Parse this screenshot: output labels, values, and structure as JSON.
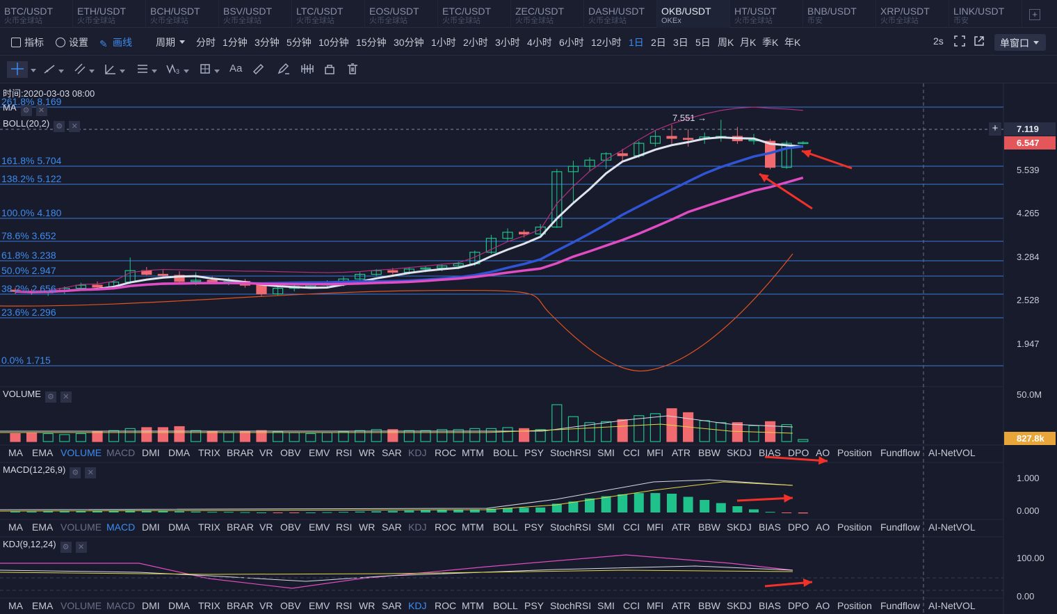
{
  "symbols": [
    {
      "pair": "BTC/USDT",
      "exchange": "火币全球站"
    },
    {
      "pair": "ETH/USDT",
      "exchange": "火币全球站"
    },
    {
      "pair": "BCH/USDT",
      "exchange": "火币全球站"
    },
    {
      "pair": "BSV/USDT",
      "exchange": "火币全球站"
    },
    {
      "pair": "LTC/USDT",
      "exchange": "火币全球站"
    },
    {
      "pair": "EOS/USDT",
      "exchange": "火币全球站"
    },
    {
      "pair": "ETC/USDT",
      "exchange": "火币全球站"
    },
    {
      "pair": "ZEC/USDT",
      "exchange": "火币全球站"
    },
    {
      "pair": "DASH/USDT",
      "exchange": "火币全球站"
    },
    {
      "pair": "OKB/USDT",
      "exchange": "OKEx"
    },
    {
      "pair": "HT/USDT",
      "exchange": "火币全球站"
    },
    {
      "pair": "BNB/USDT",
      "exchange": "币安"
    },
    {
      "pair": "XRP/USDT",
      "exchange": "火币全球站"
    },
    {
      "pair": "LINK/USDT",
      "exchange": "币安"
    }
  ],
  "active_symbol_index": 9,
  "toolbar": {
    "indicators_label": "指标",
    "settings_label": "设置",
    "draw_label": "画线",
    "period_label": "周期",
    "periods": [
      "分时",
      "1分钟",
      "3分钟",
      "5分钟",
      "10分钟",
      "15分钟",
      "30分钟",
      "1小时",
      "2小时",
      "3小时",
      "4小时",
      "6小时",
      "12小时",
      "1日",
      "2日",
      "3日",
      "5日",
      "周K",
      "月K",
      "季K",
      "年K"
    ],
    "active_period": "1日",
    "refresh": "2s",
    "window_mode": "单窗口"
  },
  "draw_tools": [
    "crosshair-icon",
    "trendline-icon",
    "parallel-lines-icon",
    "angle-icon",
    "horizontal-lines-icon",
    "wave-icon",
    "box-icon",
    "text-tool",
    "ruler-icon",
    "brush-icon",
    "magnet-icon",
    "lock-icon",
    "trash-icon"
  ],
  "draw_text_tool": "Aa",
  "info": {
    "time": "时间:2020-03-03 08:00",
    "ma_label": "MA",
    "boll_label": "BOLL(20,2)",
    "peak_label": "7.551"
  },
  "fib_levels": [
    {
      "label": "261.8% 8.169",
      "price": 8.169
    },
    {
      "label": "161.8% 5.704",
      "price": 5.704
    },
    {
      "label": "138.2% 5.122",
      "price": 5.122
    },
    {
      "label": "100.0% 4.180",
      "price": 4.18
    },
    {
      "label": "78.6% 3.652",
      "price": 3.652
    },
    {
      "label": "61.8% 3.238",
      "price": 3.238
    },
    {
      "label": "50.0% 2.947",
      "price": 2.947
    },
    {
      "label": "38.2% 2.656",
      "price": 2.656
    },
    {
      "label": "23.6% 2.296",
      "price": 2.296
    },
    {
      "label": "0.0% 1.715",
      "price": 1.715
    }
  ],
  "price_axis": [
    "7.119",
    "5.539",
    "4.265",
    "3.284",
    "2.528",
    "1.947"
  ],
  "current_price": "6.547",
  "crosshair_price": "7.119",
  "volume": {
    "label": "VOLUME",
    "axis_top": "50.0M",
    "current": "827.8k"
  },
  "macd": {
    "label": "MACD(12,26,9)",
    "axis": [
      "1.000",
      "0.000"
    ]
  },
  "kdj": {
    "label": "KDJ(9,12,24)",
    "axis": [
      "100.00",
      "0.00"
    ]
  },
  "indicator_tabs": [
    "MA",
    "EMA",
    "VOLUME",
    "MACD",
    "DMI",
    "DMA",
    "TRIX",
    "BRAR",
    "VR",
    "OBV",
    "EMV",
    "RSI",
    "WR",
    "SAR",
    "KDJ",
    "ROC",
    "MTM",
    "BOLL",
    "PSY",
    "StochRSI",
    "SMI",
    "CCI",
    "MFI",
    "ATR",
    "BBW",
    "SKDJ",
    "BIAS",
    "DPO",
    "AO",
    "Position",
    "Fundflow",
    "AI-NetVOL"
  ],
  "colors": {
    "up": "#1fc28a",
    "down": "#f06a6f",
    "accent": "#3c8cf0",
    "ma_white": "#dfe3ee",
    "ma_blue": "#2f55d4",
    "ma_pink": "#e04cc1",
    "arrow": "#f2322a"
  },
  "chart_data": {
    "type": "candlestick",
    "timeframe": "1日",
    "date_shown": "2020-03-03 08:00",
    "candles": [
      {
        "o": 2.72,
        "h": 2.76,
        "l": 2.66,
        "c": 2.7
      },
      {
        "o": 2.7,
        "h": 2.74,
        "l": 2.64,
        "c": 2.68
      },
      {
        "o": 2.68,
        "h": 2.72,
        "l": 2.62,
        "c": 2.7
      },
      {
        "o": 2.7,
        "h": 2.78,
        "l": 2.66,
        "c": 2.75
      },
      {
        "o": 2.75,
        "h": 2.84,
        "l": 2.72,
        "c": 2.8
      },
      {
        "o": 2.8,
        "h": 2.86,
        "l": 2.74,
        "c": 2.77
      },
      {
        "o": 2.77,
        "h": 2.88,
        "l": 2.74,
        "c": 2.85
      },
      {
        "o": 2.85,
        "h": 3.28,
        "l": 2.82,
        "c": 3.05
      },
      {
        "o": 3.05,
        "h": 3.12,
        "l": 2.96,
        "c": 2.98
      },
      {
        "o": 2.98,
        "h": 3.06,
        "l": 2.92,
        "c": 2.96
      },
      {
        "o": 2.96,
        "h": 3.04,
        "l": 2.84,
        "c": 2.86
      },
      {
        "o": 2.86,
        "h": 3.02,
        "l": 2.8,
        "c": 2.88
      },
      {
        "o": 2.88,
        "h": 2.94,
        "l": 2.82,
        "c": 2.85
      },
      {
        "o": 2.85,
        "h": 2.92,
        "l": 2.8,
        "c": 2.86
      },
      {
        "o": 2.86,
        "h": 2.9,
        "l": 2.76,
        "c": 2.8
      },
      {
        "o": 2.8,
        "h": 2.84,
        "l": 2.62,
        "c": 2.66
      },
      {
        "o": 2.66,
        "h": 2.78,
        "l": 2.62,
        "c": 2.75
      },
      {
        "o": 2.75,
        "h": 2.8,
        "l": 2.7,
        "c": 2.78
      },
      {
        "o": 2.78,
        "h": 2.84,
        "l": 2.74,
        "c": 2.8
      },
      {
        "o": 2.8,
        "h": 2.88,
        "l": 2.76,
        "c": 2.82
      },
      {
        "o": 2.82,
        "h": 2.94,
        "l": 2.78,
        "c": 2.9
      },
      {
        "o": 2.9,
        "h": 3.02,
        "l": 2.86,
        "c": 2.98
      },
      {
        "o": 2.98,
        "h": 3.08,
        "l": 2.94,
        "c": 3.05
      },
      {
        "o": 3.05,
        "h": 3.1,
        "l": 2.98,
        "c": 3.02
      },
      {
        "o": 3.02,
        "h": 3.12,
        "l": 2.98,
        "c": 3.08
      },
      {
        "o": 3.08,
        "h": 3.14,
        "l": 3.02,
        "c": 3.1
      },
      {
        "o": 3.1,
        "h": 3.18,
        "l": 3.04,
        "c": 3.14
      },
      {
        "o": 3.14,
        "h": 3.22,
        "l": 3.08,
        "c": 3.18
      },
      {
        "o": 3.18,
        "h": 3.44,
        "l": 3.14,
        "c": 3.4
      },
      {
        "o": 3.4,
        "h": 3.8,
        "l": 3.36,
        "c": 3.72
      },
      {
        "o": 3.72,
        "h": 3.95,
        "l": 3.66,
        "c": 3.86
      },
      {
        "o": 3.86,
        "h": 3.92,
        "l": 3.74,
        "c": 3.82
      },
      {
        "o": 3.82,
        "h": 4.05,
        "l": 3.78,
        "c": 3.98
      },
      {
        "o": 3.98,
        "h": 5.6,
        "l": 3.96,
        "c": 5.5
      },
      {
        "o": 5.5,
        "h": 5.9,
        "l": 4.6,
        "c": 5.7
      },
      {
        "o": 5.7,
        "h": 6.02,
        "l": 5.5,
        "c": 5.92
      },
      {
        "o": 5.92,
        "h": 6.2,
        "l": 5.6,
        "c": 6.15
      },
      {
        "o": 6.15,
        "h": 6.32,
        "l": 5.86,
        "c": 6.08
      },
      {
        "o": 6.08,
        "h": 6.6,
        "l": 6.0,
        "c": 6.52
      },
      {
        "o": 6.52,
        "h": 7.05,
        "l": 6.4,
        "c": 6.8
      },
      {
        "o": 6.8,
        "h": 7.3,
        "l": 6.5,
        "c": 6.72
      },
      {
        "o": 6.72,
        "h": 7.1,
        "l": 6.4,
        "c": 6.7
      },
      {
        "o": 6.7,
        "h": 6.96,
        "l": 6.5,
        "c": 6.78
      },
      {
        "o": 6.78,
        "h": 7.551,
        "l": 6.58,
        "c": 6.8
      },
      {
        "o": 6.8,
        "h": 7.2,
        "l": 6.5,
        "c": 6.62
      },
      {
        "o": 6.62,
        "h": 6.9,
        "l": 6.48,
        "c": 6.66
      },
      {
        "o": 6.6,
        "h": 6.7,
        "l": 5.58,
        "c": 5.66
      },
      {
        "o": 5.66,
        "h": 6.62,
        "l": 5.6,
        "c": 6.52
      },
      {
        "o": 6.52,
        "h": 6.6,
        "l": 6.48,
        "c": 6.547
      }
    ],
    "volume": [
      8,
      9,
      8,
      7,
      8,
      10,
      11,
      13,
      14,
      14,
      15,
      11,
      10,
      9,
      10,
      11,
      10,
      9,
      8,
      9,
      10,
      11,
      12,
      12,
      11,
      11,
      12,
      12,
      13,
      13,
      14,
      13,
      12,
      37,
      25,
      19,
      20,
      22,
      26,
      28,
      33,
      29,
      21,
      19,
      19,
      16,
      20,
      17,
      2
    ],
    "macd_hist": [
      0.03,
      0.03,
      0.04,
      0.04,
      0.05,
      0.05,
      0.06,
      0.07,
      0.06,
      0.05,
      0.04,
      0.03,
      0.02,
      0.02,
      0.01,
      0.0,
      -0.01,
      -0.01,
      0.0,
      0.01,
      0.02,
      0.03,
      0.04,
      0.05,
      0.06,
      0.07,
      0.08,
      0.09,
      0.1,
      0.12,
      0.14,
      0.15,
      0.16,
      0.28,
      0.35,
      0.45,
      0.52,
      0.58,
      0.62,
      0.62,
      0.6,
      0.5,
      0.4,
      0.3,
      0.2,
      0.1,
      0.02,
      -0.02,
      -0.03
    ]
  }
}
